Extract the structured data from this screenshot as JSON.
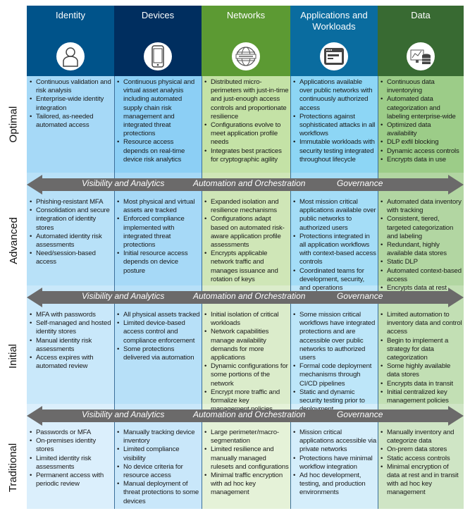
{
  "columns": [
    {
      "title": "Identity",
      "icon": "person-icon",
      "color": "#00538a"
    },
    {
      "title": "Devices",
      "icon": "mobile-device-icon",
      "color": "#002e5f"
    },
    {
      "title": "Networks",
      "icon": "network-globe-icon",
      "color": "#5c9a33"
    },
    {
      "title": "Applications and Workloads",
      "icon": "application-window-icon",
      "color": "#0a6c9f"
    },
    {
      "title": "Data",
      "icon": "data-analytics-icon",
      "color": "#386a32"
    }
  ],
  "arrow": {
    "labels": [
      "Visibility and Analytics",
      "Automation and Orchestration",
      "Governance"
    ]
  },
  "levels": [
    {
      "name": "Optimal",
      "cells": [
        [
          "Continuous validation and risk analysis",
          "Enterprise-wide identity integration",
          "Tailored, as-needed automated access"
        ],
        [
          "Continuous physical and virtual asset analysis including automated supply chain risk management and integrated threat protections",
          "Resource access depends on real-time device risk analytics"
        ],
        [
          "Distributed micro-perimeters with just-in-time and just-enough access controls and proportionate resilience",
          "Configurations evolve to meet application profile needs",
          "Integrates best practices for cryptographic agility"
        ],
        [
          "Applications available over public networks with continuously authorized access",
          "Protections against sophisticated attacks in all workflows",
          "Immutable workloads with security testing integrated throughout lifecycle"
        ],
        [
          "Continuous data inventorying",
          "Automated data categorization and labeling enterprise-wide",
          "Optimized data availability",
          "DLP exfil blocking",
          "Dynamic access controls",
          "Encrypts data in use"
        ]
      ]
    },
    {
      "name": "Advanced",
      "cells": [
        [
          "Phishing-resistant MFA",
          "Consolidation and secure integration of identity stores",
          "Automated identity risk assessments",
          "Need/session-based access"
        ],
        [
          "Most physical and virtual assets are tracked",
          "Enforced compliance implemented with integrated threat protections",
          "Initial resource access depends on device posture"
        ],
        [
          "Expanded isolation and resilience mechanisms",
          "Configurations adapt based on automated risk-aware application profile assessments",
          "Encrypts applicable network traffic and manages issuance and rotation of keys"
        ],
        [
          "Most mission critical applications available over public networks to authorized users",
          "Protections integrated in all application workflows with context-based access controls",
          "Coordinated teams for development, security, and operations"
        ],
        [
          "Automated data inventory with tracking",
          "Consistent, tiered, targeted categorization and labeling",
          "Redundant, highly available data stores",
          "Static DLP",
          "Automated context-based access",
          "Encrypts data at rest"
        ]
      ]
    },
    {
      "name": "Initial",
      "cells": [
        [
          "MFA with passwords",
          "Self-managed and hosted identity stores",
          "Manual identity risk assessments",
          "Access expires with automated review"
        ],
        [
          "All physical assets tracked",
          "Limited device-based access control and compliance enforcement",
          "Some protections delivered via automation"
        ],
        [
          "Initial isolation of critical workloads",
          "Network capabilities manage availability demands for more applications",
          "Dynamic configurations for some portions of the network",
          "Encrypt more traffic and formalize key management policies"
        ],
        [
          "Some mission critical workflows have integrated protections and are accessible over public networks to authorized users",
          "Formal code deployment mechanisms through CI/CD pipelines",
          "Static and dynamic security testing prior to deployment"
        ],
        [
          "Limited automation to inventory data and control access",
          "Begin to implement a strategy for data categorization",
          "Some highly available data stores",
          "Encrypts data in transit",
          "Initial centralized key management policies"
        ]
      ]
    },
    {
      "name": "Traditional",
      "cells": [
        [
          "Passwords or MFA",
          "On-premises identity stores",
          "Limited identity risk assessments",
          "Permanent access with periodic review"
        ],
        [
          "Manually tracking device inventory",
          "Limited compliance visibility",
          "No device criteria for resource access",
          "Manual deployment of threat protections to some devices"
        ],
        [
          "Large perimeter/macro-segmentation",
          "Limited resilience and manually managed rulesets and configurations",
          "Minimal traffic encryption with ad hoc key management"
        ],
        [
          "Mission critical applications accessible via private networks",
          "Protections have minimal workflow integration",
          "Ad hoc development, testing, and production environments"
        ],
        [
          "Manually inventory and categorize data",
          "On-prem data stores",
          "Static access controls",
          "Minimal encryption of data at rest and in transit with ad hoc key management"
        ]
      ]
    }
  ]
}
